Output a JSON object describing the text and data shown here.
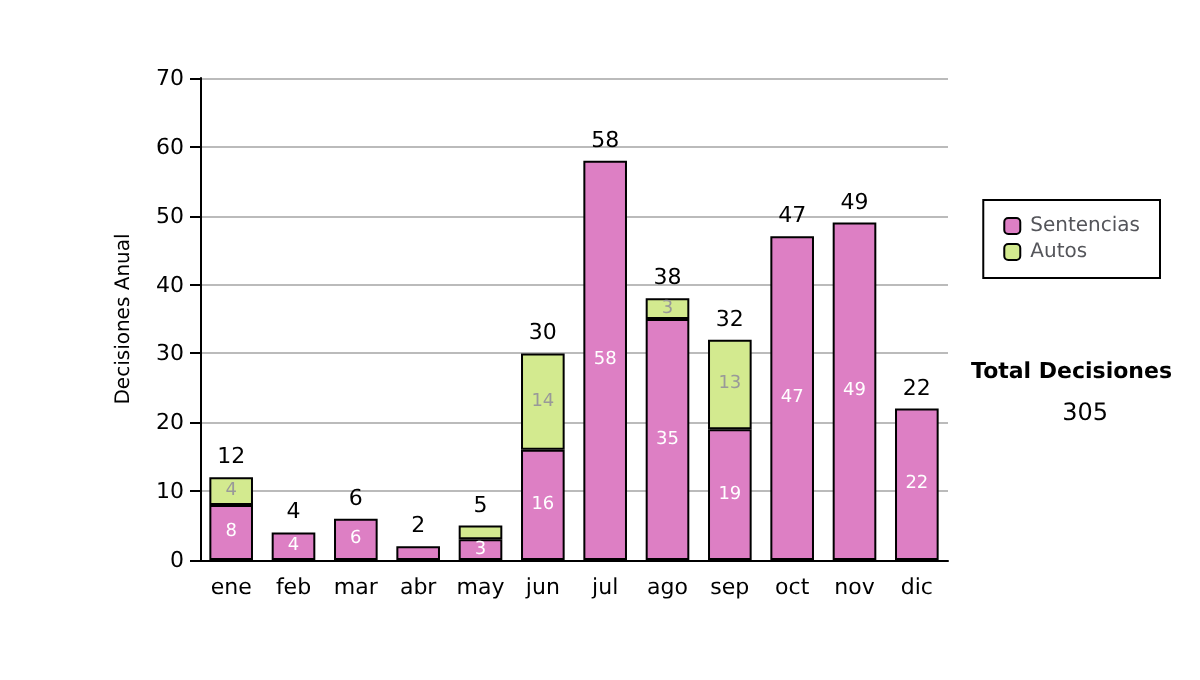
{
  "chart_data": {
    "type": "bar",
    "ylabel": "Decisiones Anual",
    "categories": [
      "ene",
      "feb",
      "mar",
      "abr",
      "may",
      "jun",
      "jul",
      "ago",
      "sep",
      "oct",
      "nov",
      "dic"
    ],
    "series": [
      {
        "name": "Sentencias",
        "color": "#dd7fc4",
        "values": [
          8,
          4,
          6,
          2,
          3,
          16,
          58,
          35,
          19,
          47,
          49,
          22
        ],
        "value_labels": [
          "8",
          "4",
          "6",
          null,
          "3",
          "16",
          "58",
          "35",
          "19",
          "47",
          "49",
          "22"
        ]
      },
      {
        "name": "Autos",
        "color": "#d3ea8f",
        "values": [
          4,
          0,
          0,
          0,
          2,
          14,
          0,
          3,
          13,
          0,
          0,
          0
        ],
        "value_labels": [
          "4",
          null,
          null,
          null,
          null,
          "14",
          null,
          "3",
          "13",
          null,
          null,
          null
        ]
      }
    ],
    "stacked": true,
    "totals": [
      "12",
      "4",
      "6",
      "2",
      "5",
      "30",
      "58",
      "38",
      "32",
      "47",
      "49",
      "22"
    ],
    "ylim": [
      0,
      70
    ],
    "yticks": [
      0,
      10,
      20,
      30,
      40,
      50,
      60,
      70
    ],
    "grid": "y",
    "legend": "right",
    "annotations": [
      "Total Decisiones",
      "305"
    ]
  }
}
